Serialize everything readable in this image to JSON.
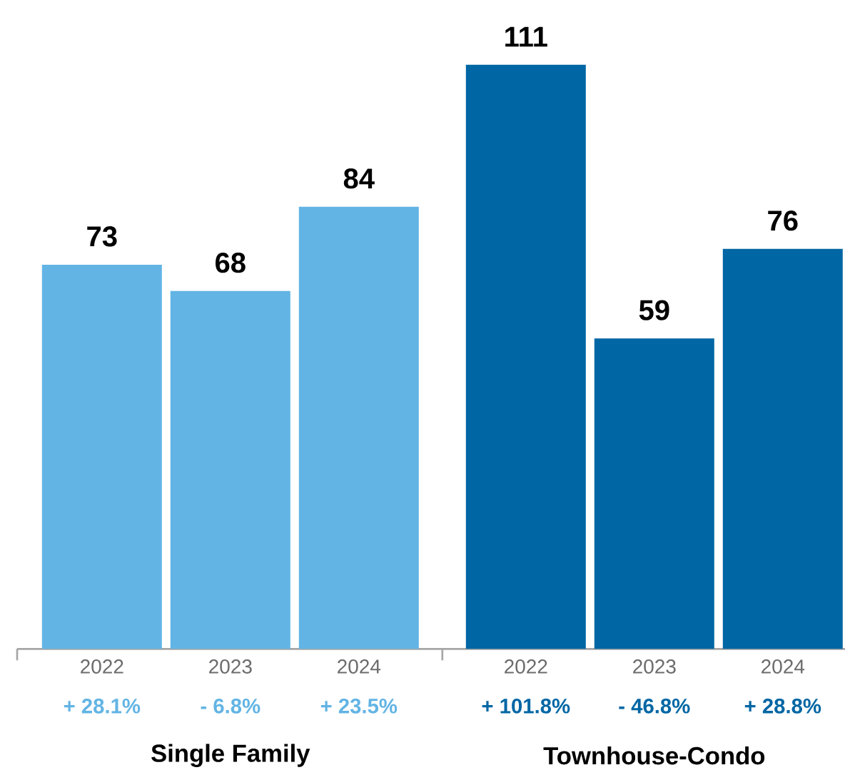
{
  "chart_data": {
    "type": "bar",
    "categories": [
      "2022",
      "2023",
      "2024",
      "2022",
      "2023",
      "2024"
    ],
    "values": [
      73,
      68,
      84,
      111,
      59,
      76
    ],
    "colors": [
      "#62b4e4",
      "#62b4e4",
      "#62b4e4",
      "#0066a4",
      "#0066a4",
      "#0066a4"
    ],
    "data_labels": true,
    "annotations": [
      "+ 28.1%",
      "- 6.8%",
      "+ 23.5%",
      "+ 101.8%",
      "- 46.8%",
      "+ 28.8%",
      "Single Family",
      "Townhouse-Condo"
    ]
  }
}
